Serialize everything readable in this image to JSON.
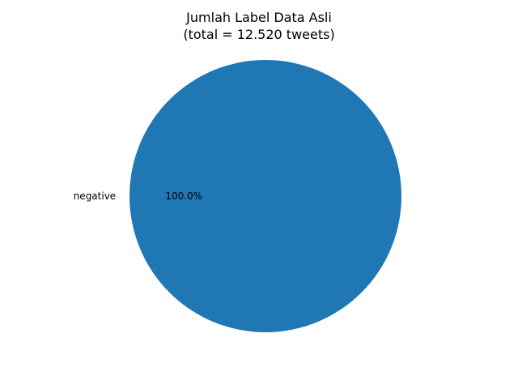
{
  "chart_data": {
    "type": "pie",
    "title_lines": [
      "Jumlah Label Data Asli",
      "(total = 12.520 tweets)"
    ],
    "slices": [
      {
        "label": "negative",
        "value": 12520,
        "percent_label": "100.0%",
        "color": "#1f77b4"
      }
    ],
    "start_angle_deg": 0,
    "legend": "none"
  }
}
